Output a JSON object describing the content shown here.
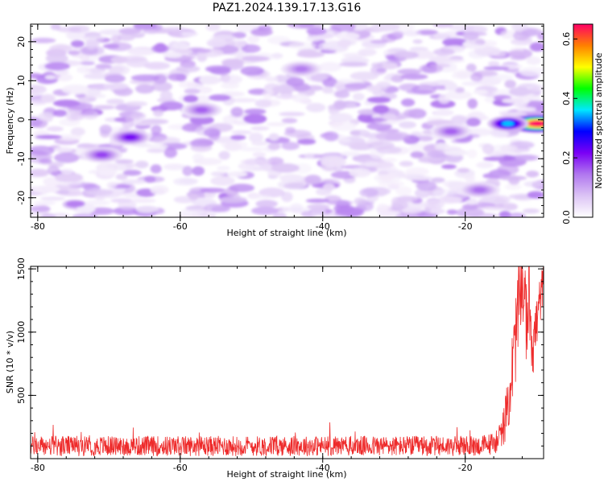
{
  "figure_title": "PAZ1.2024.139.17.13.G16",
  "colors": {
    "snr_line": "#ee2a2a",
    "axis": "#000000",
    "colormap": [
      "#ffffff",
      "#dcc4f5",
      "#b077ef",
      "#7a00f5",
      "#0000ff",
      "#00e8ff",
      "#00ff00",
      "#ffff00",
      "#ff8000",
      "#ff0066"
    ]
  },
  "chart_data": [
    {
      "type": "heatmap",
      "title": "",
      "xlabel": "Height of straight line (km)",
      "ylabel": "Frequency (Hz)",
      "xlim": [
        -81,
        -9
      ],
      "ylim": [
        -25,
        24.5
      ],
      "x_ticks": [
        -80,
        -60,
        -40,
        -20
      ],
      "y_ticks": [
        -20,
        -10,
        0,
        10,
        20
      ],
      "grid": false,
      "colorbar": {
        "label": "Normalized spectral amplitude",
        "range": [
          0,
          0.65
        ],
        "ticks": [
          0.0,
          0.2,
          0.4,
          0.6
        ]
      },
      "features": [
        {
          "x": -10.5,
          "y": -1,
          "value": 0.65,
          "note": "peak"
        },
        {
          "x": -14,
          "y": -1,
          "value": 0.35
        },
        {
          "x": -67,
          "y": -4.5,
          "value": 0.22
        },
        {
          "x": -71,
          "y": -9,
          "value": 0.18
        },
        {
          "x": -57,
          "y": 2.5,
          "value": 0.16
        },
        {
          "x": -22,
          "y": -3,
          "value": 0.16
        },
        {
          "x": -18,
          "y": -18,
          "value": 0.15
        },
        {
          "x": -43,
          "y": 13,
          "value": 0.14
        }
      ],
      "background_level": [
        0.02,
        0.1
      ]
    },
    {
      "type": "line",
      "title": "",
      "xlabel": "Height of straight line (km)",
      "ylabel": "SNR (10 * v/v)",
      "xlim": [
        -81,
        -9
      ],
      "ylim": [
        0,
        1520
      ],
      "x_ticks": [
        -80,
        -60,
        -40,
        -20
      ],
      "y_ticks": [
        500,
        1000,
        1500
      ],
      "grid": false,
      "series": [
        {
          "x": [
            -81,
            -75,
            -70,
            -65,
            -60,
            -55,
            -50,
            -45,
            -40,
            -35,
            -30,
            -25,
            -20,
            -18,
            -16,
            -15,
            -14.5,
            -14,
            -13.5,
            -13,
            -12.5,
            -12,
            -11.5,
            -11,
            -10.5,
            -10,
            -9.5,
            -9
          ],
          "y_center": [
            100,
            100,
            100,
            100,
            100,
            100,
            100,
            100,
            100,
            100,
            100,
            100,
            100,
            100,
            120,
            180,
            280,
            420,
            650,
            900,
            1200,
            1400,
            1100,
            1250,
            900,
            1050,
            1250,
            1400
          ],
          "y_spread": [
            80,
            80,
            80,
            80,
            80,
            80,
            80,
            80,
            80,
            80,
            80,
            80,
            80,
            80,
            90,
            120,
            160,
            220,
            300,
            350,
            350,
            300,
            350,
            350,
            300,
            250,
            200,
            150
          ]
        }
      ]
    }
  ]
}
